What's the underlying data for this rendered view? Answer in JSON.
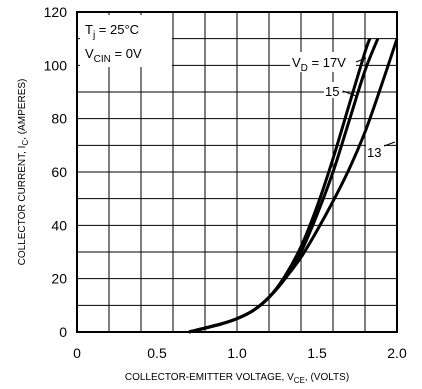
{
  "chart_data": {
    "type": "line",
    "title": "",
    "xlabel": "COLLECTOR-EMITTER VOLTAGE, V",
    "xlabel_sub": "CE",
    "xlabel_suffix": ", (VOLTS)",
    "ylabel": "COLLECTOR CURRENT, I",
    "ylabel_sub": "C",
    "ylabel_suffix": ", (AMPERES)",
    "xlim": [
      0,
      2.0
    ],
    "ylim": [
      0,
      120
    ],
    "x_ticks": [
      0,
      0.5,
      1.0,
      1.5,
      2.0
    ],
    "x_tick_labels": [
      "0",
      "0.5",
      "1.0",
      "1.5",
      "2.0"
    ],
    "y_ticks": [
      0,
      20,
      40,
      60,
      80,
      100,
      120
    ],
    "y_tick_labels": [
      "0",
      "20",
      "40",
      "60",
      "80",
      "100",
      "120"
    ],
    "grid": true,
    "annotations": {
      "tj": {
        "prefix": "T",
        "sub": "j",
        "suffix": " = 25°C"
      },
      "vcin": {
        "prefix": "V",
        "sub": "CIN",
        "suffix": " = 0V"
      }
    },
    "series": [
      {
        "name": "V_D = 17V",
        "label_prefix": "V",
        "label_sub": "D",
        "label_suffix": " = 17V",
        "x": [
          0.7,
          0.9,
          1.0,
          1.1,
          1.2,
          1.3,
          1.4,
          1.5,
          1.6,
          1.7,
          1.8,
          1.83
        ],
        "y": [
          0,
          3,
          5,
          8,
          13,
          21,
          32,
          47,
          65,
          85,
          105,
          110
        ]
      },
      {
        "name": "15",
        "label_prefix": "",
        "label_sub": "",
        "label_suffix": "15",
        "x": [
          0.7,
          0.9,
          1.0,
          1.1,
          1.2,
          1.3,
          1.4,
          1.5,
          1.6,
          1.7,
          1.8,
          1.88
        ],
        "y": [
          0,
          3,
          5,
          8,
          13,
          20,
          30,
          44,
          60,
          79,
          98,
          110
        ]
      },
      {
        "name": "13",
        "label_prefix": "",
        "label_sub": "",
        "label_suffix": "13",
        "x": [
          0.7,
          0.9,
          1.0,
          1.1,
          1.2,
          1.3,
          1.4,
          1.5,
          1.6,
          1.7,
          1.8,
          1.9,
          2.0
        ],
        "y": [
          0,
          3,
          5,
          8,
          13,
          20,
          28,
          38,
          49,
          61,
          75,
          92,
          110
        ]
      }
    ]
  }
}
